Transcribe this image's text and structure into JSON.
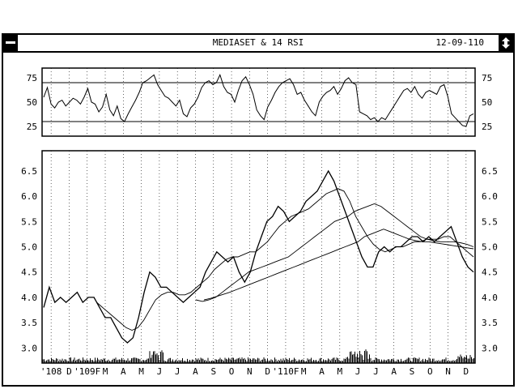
{
  "window": {
    "title": "MEDIASET & 14 RSI",
    "date": "12-09-110",
    "system_menu": "system-menu",
    "maximize": "maximize"
  },
  "chart_data": [
    {
      "type": "line",
      "panel": "rsi",
      "title": "",
      "ylim": [
        15,
        85
      ],
      "yticks": [
        75,
        50,
        25
      ],
      "reference_lines": [
        70,
        30
      ],
      "series": [
        {
          "values": [
            55,
            65,
            48,
            44,
            50,
            52,
            46,
            50,
            54,
            52,
            48,
            55,
            64,
            50,
            48,
            40,
            45,
            58,
            42,
            36,
            46,
            33,
            30,
            38,
            45,
            52,
            60,
            70,
            72,
            75,
            78,
            68,
            62,
            56,
            54,
            50,
            46,
            52,
            38,
            35,
            44,
            48,
            55,
            65,
            70,
            72,
            68,
            70,
            78,
            66,
            60,
            58,
            50,
            62,
            72,
            76,
            68,
            58,
            42,
            36,
            32,
            45,
            52,
            60,
            66,
            70,
            72,
            74,
            68,
            58,
            60,
            52,
            46,
            40,
            36,
            50,
            56,
            60,
            62,
            66,
            58,
            64,
            72,
            75,
            70,
            68,
            40,
            38,
            36,
            32,
            34,
            30,
            34,
            32,
            38,
            44,
            50,
            56,
            62,
            64,
            60,
            66,
            58,
            54,
            60,
            62,
            60,
            58,
            66,
            68,
            56,
            38,
            34,
            30,
            26,
            25,
            36,
            38
          ]
        }
      ]
    },
    {
      "type": "line",
      "panel": "price",
      "title": "",
      "ylim": [
        2.7,
        6.9
      ],
      "yticks": [
        6.5,
        6.0,
        5.5,
        5.0,
        4.5,
        4.0,
        3.5,
        3.0
      ],
      "xlabels": [
        "'108",
        "D",
        "'109F",
        "M",
        "A",
        "M",
        "J",
        "J",
        "A",
        "S",
        "O",
        "N",
        "D",
        "'110F",
        "M",
        "A",
        "M",
        "J",
        "J",
        "A",
        "S",
        "O",
        "N",
        "D"
      ],
      "series": [
        {
          "values": [
            3.8,
            4.2,
            3.9,
            4.0,
            3.9,
            4.0,
            4.1,
            3.9,
            4.0,
            4.0,
            3.8,
            3.6,
            3.6,
            3.4,
            3.2,
            3.1,
            3.2,
            3.6,
            4.1,
            4.5,
            4.4,
            4.2,
            4.2,
            4.1,
            4.0,
            3.9,
            4.0,
            4.1,
            4.2,
            4.5,
            4.7,
            4.9,
            4.8,
            4.7,
            4.8,
            4.5,
            4.3,
            4.5,
            4.9,
            5.2,
            5.5,
            5.6,
            5.8,
            5.7,
            5.5,
            5.6,
            5.7,
            5.9,
            6.0,
            6.1,
            6.3,
            6.5,
            6.3,
            6.0,
            5.7,
            5.4,
            5.1,
            4.8,
            4.6,
            4.6,
            4.9,
            5.0,
            4.9,
            5.0,
            5.0,
            5.1,
            5.2,
            5.2,
            5.1,
            5.2,
            5.1,
            5.2,
            5.3,
            5.4,
            5.1,
            4.8,
            4.6,
            4.5
          ]
        },
        {
          "values": [
            null,
            null,
            null,
            null,
            null,
            null,
            null,
            null,
            null,
            3.9,
            3.8,
            3.7,
            3.6,
            3.5,
            3.4,
            3.35,
            3.4,
            3.55,
            3.75,
            3.95,
            4.05,
            4.1,
            4.1,
            4.05,
            4.05,
            4.1,
            4.2,
            4.3,
            4.4,
            4.55,
            4.65,
            4.75,
            4.8,
            4.8,
            4.85,
            4.9,
            4.9,
            5.0,
            5.1,
            5.25,
            5.4,
            5.5,
            5.6,
            5.65,
            5.7,
            5.75,
            5.85,
            5.95,
            6.05,
            6.1,
            6.15,
            6.1,
            5.9,
            5.6,
            5.4,
            5.2,
            5.05,
            4.95,
            4.9,
            4.95,
            5.0,
            5.0,
            5.05,
            5.1,
            5.1,
            5.15,
            5.15,
            5.15,
            5.2,
            5.2,
            5.1,
            5.0,
            4.9,
            4.8
          ]
        },
        {
          "values": [
            null,
            null,
            null,
            null,
            null,
            null,
            null,
            null,
            null,
            null,
            null,
            null,
            null,
            null,
            null,
            null,
            null,
            null,
            null,
            null,
            null,
            null,
            null,
            3.95,
            3.92,
            3.95,
            4.0,
            4.1,
            4.2,
            4.3,
            4.4,
            4.5,
            4.55,
            4.6,
            4.65,
            4.7,
            4.75,
            4.8,
            4.9,
            5.0,
            5.1,
            5.2,
            5.3,
            5.4,
            5.5,
            5.55,
            5.6,
            5.7,
            5.75,
            5.8,
            5.85,
            5.8,
            5.7,
            5.6,
            5.5,
            5.4,
            5.3,
            5.2,
            5.15,
            5.12,
            5.1,
            5.1,
            5.1,
            5.08,
            5.05,
            5.0
          ]
        },
        {
          "values": [
            null,
            null,
            null,
            null,
            null,
            null,
            null,
            null,
            null,
            null,
            null,
            null,
            null,
            null,
            null,
            null,
            null,
            null,
            null,
            null,
            null,
            null,
            null,
            null,
            null,
            3.95,
            3.98,
            4.02,
            4.06,
            4.1,
            4.15,
            4.2,
            4.25,
            4.3,
            4.35,
            4.4,
            4.45,
            4.5,
            4.55,
            4.6,
            4.65,
            4.7,
            4.75,
            4.8,
            4.85,
            4.9,
            4.95,
            5.0,
            5.05,
            5.1,
            5.2,
            5.25,
            5.3,
            5.35,
            5.3,
            5.25,
            5.2,
            5.15,
            5.12,
            5.1,
            5.1,
            5.08,
            5.06,
            5.04,
            5.02,
            5.0,
            4.98,
            4.96
          ]
        }
      ]
    }
  ]
}
